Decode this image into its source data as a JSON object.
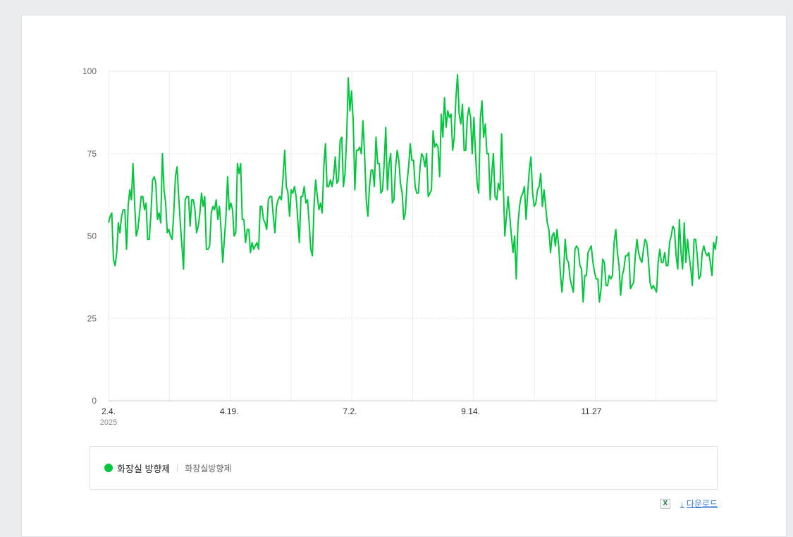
{
  "chart_data": {
    "type": "line",
    "ylim": [
      0,
      100
    ],
    "yticks": [
      0,
      25,
      50,
      75,
      100
    ],
    "xticks": [
      {
        "label": "2.4.",
        "index": 0
      },
      {
        "label": "4.19.",
        "index": 74
      },
      {
        "label": "7.2.",
        "index": 148
      },
      {
        "label": "9.14.",
        "index": 222
      },
      {
        "label": "11.27",
        "index": 296
      }
    ],
    "year_label": "2025",
    "grid": true,
    "series": [
      {
        "name": "화장실 방향제",
        "color": "#00c73c",
        "values": [
          54,
          56,
          57,
          43,
          41,
          45,
          54,
          51,
          56,
          58,
          58,
          46,
          59,
          64,
          61,
          72,
          60,
          50,
          52,
          57,
          62,
          62,
          58,
          60,
          49,
          49,
          57,
          67,
          68,
          66,
          55,
          57,
          54,
          75,
          64,
          60,
          51,
          52,
          50,
          49,
          57,
          68,
          71,
          62,
          54,
          47,
          40,
          61,
          62,
          62,
          53,
          61,
          61,
          58,
          51,
          53,
          57,
          63,
          59,
          62,
          46,
          46,
          47,
          57,
          59,
          58,
          61,
          55,
          59,
          52,
          42,
          49,
          56,
          68,
          58,
          60,
          58,
          50,
          51,
          72,
          69,
          72,
          55,
          55,
          48,
          52,
          52,
          45,
          48,
          46,
          47,
          48,
          46,
          59,
          59,
          55,
          54,
          52,
          61,
          62,
          62,
          56,
          51,
          59,
          61,
          62,
          61,
          68,
          76,
          65,
          63,
          56,
          64,
          63,
          65,
          62,
          55,
          48,
          62,
          62,
          65,
          60,
          61,
          54,
          46,
          44,
          59,
          67,
          62,
          58,
          60,
          57,
          71,
          78,
          65,
          65,
          67,
          65,
          68,
          74,
          66,
          67,
          79,
          80,
          65,
          69,
          80,
          98,
          88,
          94,
          85,
          64,
          76,
          76,
          77,
          75,
          85,
          75,
          61,
          56,
          65,
          70,
          70,
          65,
          80,
          72,
          72,
          63,
          64,
          72,
          83,
          64,
          72,
          75,
          60,
          61,
          71,
          76,
          73,
          66,
          63,
          55,
          57,
          66,
          71,
          78,
          73,
          73,
          65,
          63,
          63,
          71,
          75,
          74,
          71,
          75,
          62,
          63,
          64,
          82,
          77,
          78,
          77,
          68,
          87,
          80,
          92,
          83,
          88,
          86,
          87,
          76,
          80,
          92,
          99,
          87,
          84,
          90,
          76,
          76,
          86,
          89,
          86,
          75,
          86,
          75,
          66,
          63,
          86,
          91,
          80,
          84,
          75,
          75,
          61,
          69,
          75,
          62,
          61,
          66,
          64,
          81,
          66,
          50,
          56,
          62,
          56,
          50,
          45,
          50,
          37,
          53,
          59,
          62,
          63,
          65,
          55,
          63,
          70,
          74,
          63,
          59,
          60,
          64,
          65,
          69,
          59,
          64,
          59,
          54,
          52,
          45,
          50,
          51,
          47,
          52,
          47,
          39,
          33,
          39,
          49,
          43,
          42,
          37,
          35,
          33,
          46,
          47,
          46,
          41,
          40,
          30,
          38,
          38,
          45,
          46,
          47,
          42,
          39,
          37,
          37,
          30,
          34,
          43,
          42,
          35,
          35,
          38,
          37,
          38,
          48,
          52,
          45,
          41,
          32,
          38,
          40,
          44,
          44,
          45,
          34,
          35,
          36,
          44,
          49,
          45,
          43,
          42,
          46,
          49,
          48,
          43,
          36,
          34,
          35,
          34,
          33,
          42,
          46,
          42,
          42,
          45,
          41,
          41,
          48,
          50,
          53,
          52,
          44,
          40,
          55,
          45,
          40,
          54,
          42,
          49,
          44,
          40,
          35,
          49,
          49,
          44,
          37,
          38,
          45,
          47,
          45,
          44,
          45,
          42,
          38,
          48,
          46,
          50
        ]
      }
    ]
  },
  "legend": {
    "series_name": "화장실 방향제",
    "series_color": "#00c73c",
    "keyword": "화장실방향제"
  },
  "tools": {
    "excel_icon": "excel-icon",
    "download_label": "다운로드"
  }
}
